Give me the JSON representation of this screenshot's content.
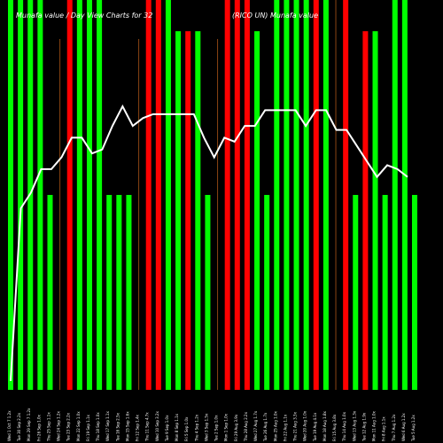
{
  "chart_data": {
    "type": "bar",
    "title_left": "Munafa value / Day View Charts for 32",
    "title_right": "(RICO UN) Munafa value",
    "colors": {
      "background": "#000000",
      "up": "#00ff00",
      "down": "#ff0000",
      "line": "#ffffff",
      "thin_bar": "#8b4513"
    },
    "bars": [
      {
        "label": "Wed 1 Oct 7 1.2x",
        "color": "up",
        "value": 100
      },
      {
        "label": "Tue 30 Sep 2.2x",
        "color": "up",
        "value": 100
      },
      {
        "label": "Mon 29 Sep 7 1.2x",
        "color": "up",
        "value": 100
      },
      {
        "label": "Fri 26 Sep 1.0x",
        "color": "up",
        "value": 100
      },
      {
        "label": "Thu 25 Sep 1.1x",
        "color": "up",
        "value": 50
      },
      {
        "label": "Wed 24 Sep 1.2x",
        "color": "thin",
        "value": 90
      },
      {
        "label": "Tue 23 Sep 2.2x",
        "color": "down",
        "value": 100
      },
      {
        "label": "Mon 22 Sep 1.0x",
        "color": "up",
        "value": 100
      },
      {
        "label": "Fri 19 Sep 1.1x",
        "color": "up",
        "value": 100
      },
      {
        "label": "Thu 18 Sep 1.0x",
        "color": "up",
        "value": 100
      },
      {
        "label": "Wed 17 Sep 1.1x",
        "color": "up",
        "value": 50
      },
      {
        "label": "Tue 16 Sep 2.5x",
        "color": "up",
        "value": 50
      },
      {
        "label": "Mon 15 Sep 1.6x",
        "color": "up",
        "value": 50
      },
      {
        "label": "Fri 12 Sep 1.4x",
        "color": "thin",
        "value": 90
      },
      {
        "label": "Thu 11 Sep 4.7x",
        "color": "down",
        "value": 100
      },
      {
        "label": "Wed 10 Sep 3.2x",
        "color": "down",
        "value": 100
      },
      {
        "label": "Tue 9 Sep 1.0x",
        "color": "up",
        "value": 100
      },
      {
        "label": "Mon 8 Sep 1.1x",
        "color": "up",
        "value": 92
      },
      {
        "label": "Fri 5 Sep 1.0x",
        "color": "down",
        "value": 92
      },
      {
        "label": "Thu 4 Sep 1.2x",
        "color": "up",
        "value": 92
      },
      {
        "label": "Wed 3 Sep 1.5x",
        "color": "up",
        "value": 50
      },
      {
        "label": "Tue 2 Sep 1.0x",
        "color": "thin",
        "value": 90
      },
      {
        "label": "Mon 1 Sep 1.0x",
        "color": "down",
        "value": 100
      },
      {
        "label": "Fri 29 Aug 3.9x",
        "color": "down",
        "value": 100
      },
      {
        "label": "Thu 28 Aug 2.2x",
        "color": "down",
        "value": 100
      },
      {
        "label": "Wed 27 Aug 1.7x",
        "color": "up",
        "value": 92
      },
      {
        "label": "Tue 26 Aug 1.7x",
        "color": "up",
        "value": 50
      },
      {
        "label": "Mon 25 Aug 1.0x",
        "color": "up",
        "value": 100
      },
      {
        "label": "Fri 22 Aug 1.1x",
        "color": "up",
        "value": 100
      },
      {
        "label": "Thu 21 Aug 3.3x",
        "color": "up",
        "value": 100
      },
      {
        "label": "Wed 20 Aug 1.0x",
        "color": "up",
        "value": 100
      },
      {
        "label": "Tue 19 Aug 4.1x",
        "color": "down",
        "value": 100
      },
      {
        "label": "Mon 18 Aug 1.8x",
        "color": "up",
        "value": 100
      },
      {
        "label": "Fri 15 Aug 3.8x",
        "color": "thin",
        "value": 100
      },
      {
        "label": "Thu 14 Aug 1.0x",
        "color": "down",
        "value": 100
      },
      {
        "label": "Wed 13 Aug 1.3x",
        "color": "up",
        "value": 50
      },
      {
        "label": "Tue 12 Aug 1.9x",
        "color": "down",
        "value": 92
      },
      {
        "label": "Mon 11 Aug 1.0x",
        "color": "up",
        "value": 92
      },
      {
        "label": "Fri 8 Aug 1.1x",
        "color": "up",
        "value": 50
      },
      {
        "label": "Thu 7 Aug 1.2x",
        "color": "up",
        "value": 100
      },
      {
        "label": "Wed 6 Aug 1.2x",
        "color": "up",
        "value": 100
      },
      {
        "label": "Tue 5 Aug 1.2x",
        "color": "up",
        "value": 50
      }
    ],
    "line_values": [
      10,
      54,
      58,
      64,
      64,
      67,
      72,
      72,
      68,
      69,
      75,
      80,
      75,
      77,
      78,
      78,
      78,
      78,
      78,
      72,
      67,
      72,
      71,
      75,
      75,
      79,
      79,
      79,
      79,
      75,
      79,
      79,
      74,
      74,
      70,
      66,
      62,
      65,
      64,
      62
    ]
  }
}
